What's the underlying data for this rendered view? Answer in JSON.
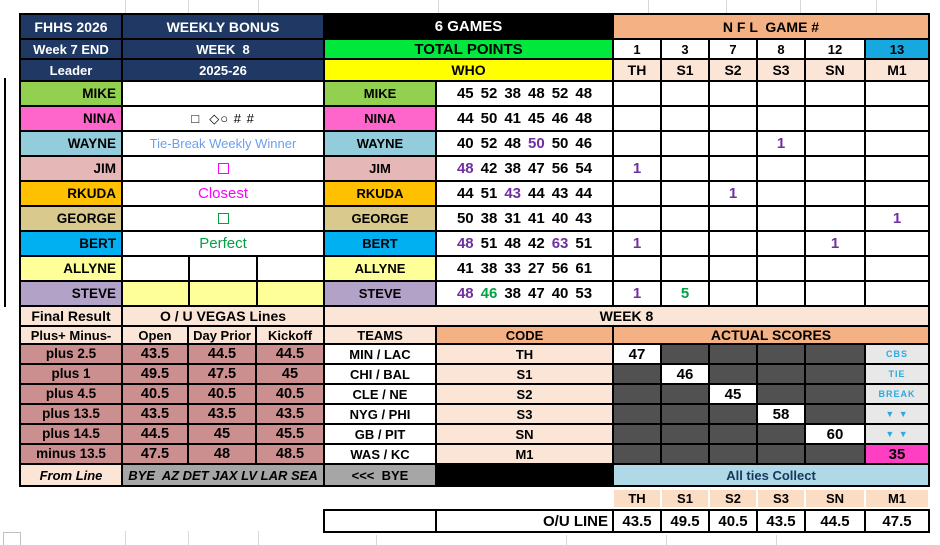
{
  "header": {
    "left": {
      "title": "FHHS 2026",
      "week_end": "Week 7 END",
      "leader_label": "Leader",
      "bonus_title": "WEEKLY BONUS",
      "week_label": "WEEK  8",
      "season": "2025-26"
    },
    "mid": {
      "games": "6 GAMES",
      "total_points": "TOTAL POINTS",
      "who": "WHO"
    },
    "right": {
      "title": "N F L  GAME #",
      "game_numbers": [
        {
          "v": "1",
          "hl": false
        },
        {
          "v": "3",
          "hl": false
        },
        {
          "v": "7",
          "hl": false
        },
        {
          "v": "8",
          "hl": false
        },
        {
          "v": "12",
          "hl": false
        },
        {
          "v": "13",
          "hl": true
        }
      ],
      "codes": [
        "TH",
        "S1",
        "S2",
        "S3",
        "SN",
        "M1"
      ]
    }
  },
  "players": [
    {
      "name": "MIKE",
      "note": {
        "kind": "empty",
        "text": ""
      },
      "scores": [
        {
          "v": "45",
          "c": "k"
        },
        {
          "v": "52",
          "c": "k"
        },
        {
          "v": "38",
          "c": "k"
        },
        {
          "v": "48",
          "c": "k"
        },
        {
          "v": "52",
          "c": "k"
        },
        {
          "v": "48",
          "c": "k"
        }
      ],
      "marks": [
        {
          "v": "",
          "c": ""
        },
        {
          "v": "",
          "c": ""
        },
        {
          "v": "",
          "c": ""
        },
        {
          "v": "",
          "c": ""
        },
        {
          "v": "",
          "c": ""
        },
        {
          "v": "",
          "c": ""
        }
      ]
    },
    {
      "name": "NINA",
      "note": {
        "kind": "symbols",
        "text": "□  ◇○ # #"
      },
      "scores": [
        {
          "v": "44",
          "c": "k"
        },
        {
          "v": "50",
          "c": "k"
        },
        {
          "v": "41",
          "c": "k"
        },
        {
          "v": "45",
          "c": "k"
        },
        {
          "v": "46",
          "c": "k"
        },
        {
          "v": "48",
          "c": "k"
        }
      ],
      "marks": [
        {
          "v": "",
          "c": ""
        },
        {
          "v": "",
          "c": ""
        },
        {
          "v": "",
          "c": ""
        },
        {
          "v": "",
          "c": ""
        },
        {
          "v": "",
          "c": ""
        },
        {
          "v": "",
          "c": ""
        }
      ]
    },
    {
      "name": "WAYNE",
      "note": {
        "kind": "text",
        "text": "Tie-Break Weekly Winner",
        "color": "blue"
      },
      "scores": [
        {
          "v": "40",
          "c": "k"
        },
        {
          "v": "52",
          "c": "k"
        },
        {
          "v": "48",
          "c": "k"
        },
        {
          "v": "50",
          "c": "p"
        },
        {
          "v": "50",
          "c": "k"
        },
        {
          "v": "46",
          "c": "k"
        }
      ],
      "marks": [
        {
          "v": "",
          "c": ""
        },
        {
          "v": "",
          "c": ""
        },
        {
          "v": "",
          "c": ""
        },
        {
          "v": "1",
          "c": "p"
        },
        {
          "v": "",
          "c": ""
        },
        {
          "v": "",
          "c": ""
        }
      ]
    },
    {
      "name": "JIM",
      "note": {
        "kind": "checkbox",
        "color": "magenta"
      },
      "scores": [
        {
          "v": "48",
          "c": "p"
        },
        {
          "v": "42",
          "c": "k"
        },
        {
          "v": "38",
          "c": "k"
        },
        {
          "v": "47",
          "c": "k"
        },
        {
          "v": "56",
          "c": "k"
        },
        {
          "v": "54",
          "c": "k"
        }
      ],
      "marks": [
        {
          "v": "1",
          "c": "p"
        },
        {
          "v": "",
          "c": ""
        },
        {
          "v": "",
          "c": ""
        },
        {
          "v": "",
          "c": ""
        },
        {
          "v": "",
          "c": ""
        },
        {
          "v": "",
          "c": ""
        }
      ]
    },
    {
      "name": "RKUDA",
      "note": {
        "kind": "text",
        "text": "Closest",
        "color": "magenta"
      },
      "scores": [
        {
          "v": "44",
          "c": "k"
        },
        {
          "v": "51",
          "c": "k"
        },
        {
          "v": "43",
          "c": "p"
        },
        {
          "v": "44",
          "c": "k"
        },
        {
          "v": "43",
          "c": "k"
        },
        {
          "v": "44",
          "c": "k"
        }
      ],
      "marks": [
        {
          "v": "",
          "c": ""
        },
        {
          "v": "",
          "c": ""
        },
        {
          "v": "1",
          "c": "p"
        },
        {
          "v": "",
          "c": ""
        },
        {
          "v": "",
          "c": ""
        },
        {
          "v": "",
          "c": ""
        }
      ]
    },
    {
      "name": "GEORGE",
      "note": {
        "kind": "checkbox",
        "color": "green"
      },
      "scores": [
        {
          "v": "50",
          "c": "k"
        },
        {
          "v": "38",
          "c": "k"
        },
        {
          "v": "31",
          "c": "k"
        },
        {
          "v": "41",
          "c": "k"
        },
        {
          "v": "40",
          "c": "k"
        },
        {
          "v": "43",
          "c": "k"
        }
      ],
      "marks": [
        {
          "v": "",
          "c": ""
        },
        {
          "v": "",
          "c": ""
        },
        {
          "v": "",
          "c": ""
        },
        {
          "v": "",
          "c": ""
        },
        {
          "v": "",
          "c": ""
        },
        {
          "v": "1",
          "c": "p"
        }
      ]
    },
    {
      "name": "BERT",
      "note": {
        "kind": "text",
        "text": "Perfect",
        "color": "green"
      },
      "scores": [
        {
          "v": "48",
          "c": "p"
        },
        {
          "v": "51",
          "c": "k"
        },
        {
          "v": "48",
          "c": "k"
        },
        {
          "v": "42",
          "c": "k"
        },
        {
          "v": "63",
          "c": "p"
        },
        {
          "v": "51",
          "c": "k"
        }
      ],
      "marks": [
        {
          "v": "1",
          "c": "p"
        },
        {
          "v": "",
          "c": ""
        },
        {
          "v": "",
          "c": ""
        },
        {
          "v": "",
          "c": ""
        },
        {
          "v": "1",
          "c": "p"
        },
        {
          "v": "",
          "c": ""
        }
      ]
    },
    {
      "name": "ALLYNE",
      "note": {
        "kind": "cells3",
        "bg": "white"
      },
      "scores": [
        {
          "v": "41",
          "c": "k"
        },
        {
          "v": "38",
          "c": "k"
        },
        {
          "v": "33",
          "c": "k"
        },
        {
          "v": "27",
          "c": "k"
        },
        {
          "v": "56",
          "c": "k"
        },
        {
          "v": "61",
          "c": "k"
        }
      ],
      "marks": [
        {
          "v": "",
          "c": ""
        },
        {
          "v": "",
          "c": ""
        },
        {
          "v": "",
          "c": ""
        },
        {
          "v": "",
          "c": ""
        },
        {
          "v": "",
          "c": ""
        },
        {
          "v": "",
          "c": ""
        }
      ]
    },
    {
      "name": "STEVE",
      "note": {
        "kind": "cells3",
        "bg": "yellow"
      },
      "scores": [
        {
          "v": "48",
          "c": "p"
        },
        {
          "v": "46",
          "c": "g"
        },
        {
          "v": "38",
          "c": "k"
        },
        {
          "v": "47",
          "c": "k"
        },
        {
          "v": "40",
          "c": "k"
        },
        {
          "v": "53",
          "c": "k"
        }
      ],
      "marks": [
        {
          "v": "1",
          "c": "p"
        },
        {
          "v": "5",
          "c": "g"
        },
        {
          "v": "",
          "c": ""
        },
        {
          "v": "",
          "c": ""
        },
        {
          "v": "",
          "c": ""
        },
        {
          "v": "",
          "c": ""
        }
      ]
    }
  ],
  "vegas": {
    "final_result": "Final Result",
    "title": "O / U VEGAS Lines",
    "row_label": "Plus+ Minus-",
    "col_open": "Open",
    "col_day_prior": "Day Prior",
    "col_kickoff": "Kickoff",
    "rows": [
      {
        "label": "plus 2.5",
        "open": "43.5",
        "day_prior": "44.5",
        "kickoff": "44.5"
      },
      {
        "label": "plus 1",
        "open": "49.5",
        "day_prior": "47.5",
        "kickoff": "45"
      },
      {
        "label": "plus 4.5",
        "open": "40.5",
        "day_prior": "40.5",
        "kickoff": "40.5"
      },
      {
        "label": "plus 13.5",
        "open": "43.5",
        "day_prior": "43.5",
        "kickoff": "43.5"
      },
      {
        "label": "plus 14.5",
        "open": "44.5",
        "day_prior": "45",
        "kickoff": "45.5"
      },
      {
        "label": "minus 13.5",
        "open": "47.5",
        "day_prior": "48",
        "kickoff": "48.5"
      }
    ],
    "from_line": "From Line",
    "bye_list": "BYE  AZ DET JAX LV LAR SEA"
  },
  "week8": {
    "title": "WEEK 8",
    "teams_label": "TEAMS",
    "code_label": "CODE",
    "scores_label": "ACTUAL SCORES",
    "games": [
      {
        "teams": "MIN / LAC",
        "code": "TH"
      },
      {
        "teams": "CHI / BAL",
        "code": "S1"
      },
      {
        "teams": "CLE / NE",
        "code": "S2"
      },
      {
        "teams": "NYG / PHI",
        "code": "S3"
      },
      {
        "teams": "GB / PIT",
        "code": "SN"
      },
      {
        "teams": "WAS / KC",
        "code": "M1"
      }
    ],
    "actual_scores": [
      "47",
      "46",
      "45",
      "58",
      "60",
      "35"
    ],
    "tiebreak_labels": [
      "CBS",
      "TIE",
      "BREAK",
      "▼ ▼",
      "▼ ▼"
    ],
    "bye_arrow": "<<<  BYE",
    "all_ties": "All ties Collect"
  },
  "bottom": {
    "ou_label": "O/U LINE",
    "ou_values": [
      "43.5",
      "49.5",
      "40.5",
      "43.5",
      "44.5",
      "47.5"
    ]
  },
  "colors": {
    "navy_header": "#1F3864",
    "bright_green": "#00E83C",
    "yellow": "#FFFF00",
    "peach": "#F4B183",
    "light_peach": "#FBE5D6",
    "rose": "#CB8F8F",
    "gray": "#A6A6A6",
    "dark_cell": "#515151",
    "magenta_cell": "#FF3FC3",
    "ties_blue": "#AFD9E6",
    "game13_blue": "#18A8E0",
    "purple_text": "#7030A0",
    "green_text": "#00A244",
    "tiebreak_text": "#29ABE2"
  }
}
